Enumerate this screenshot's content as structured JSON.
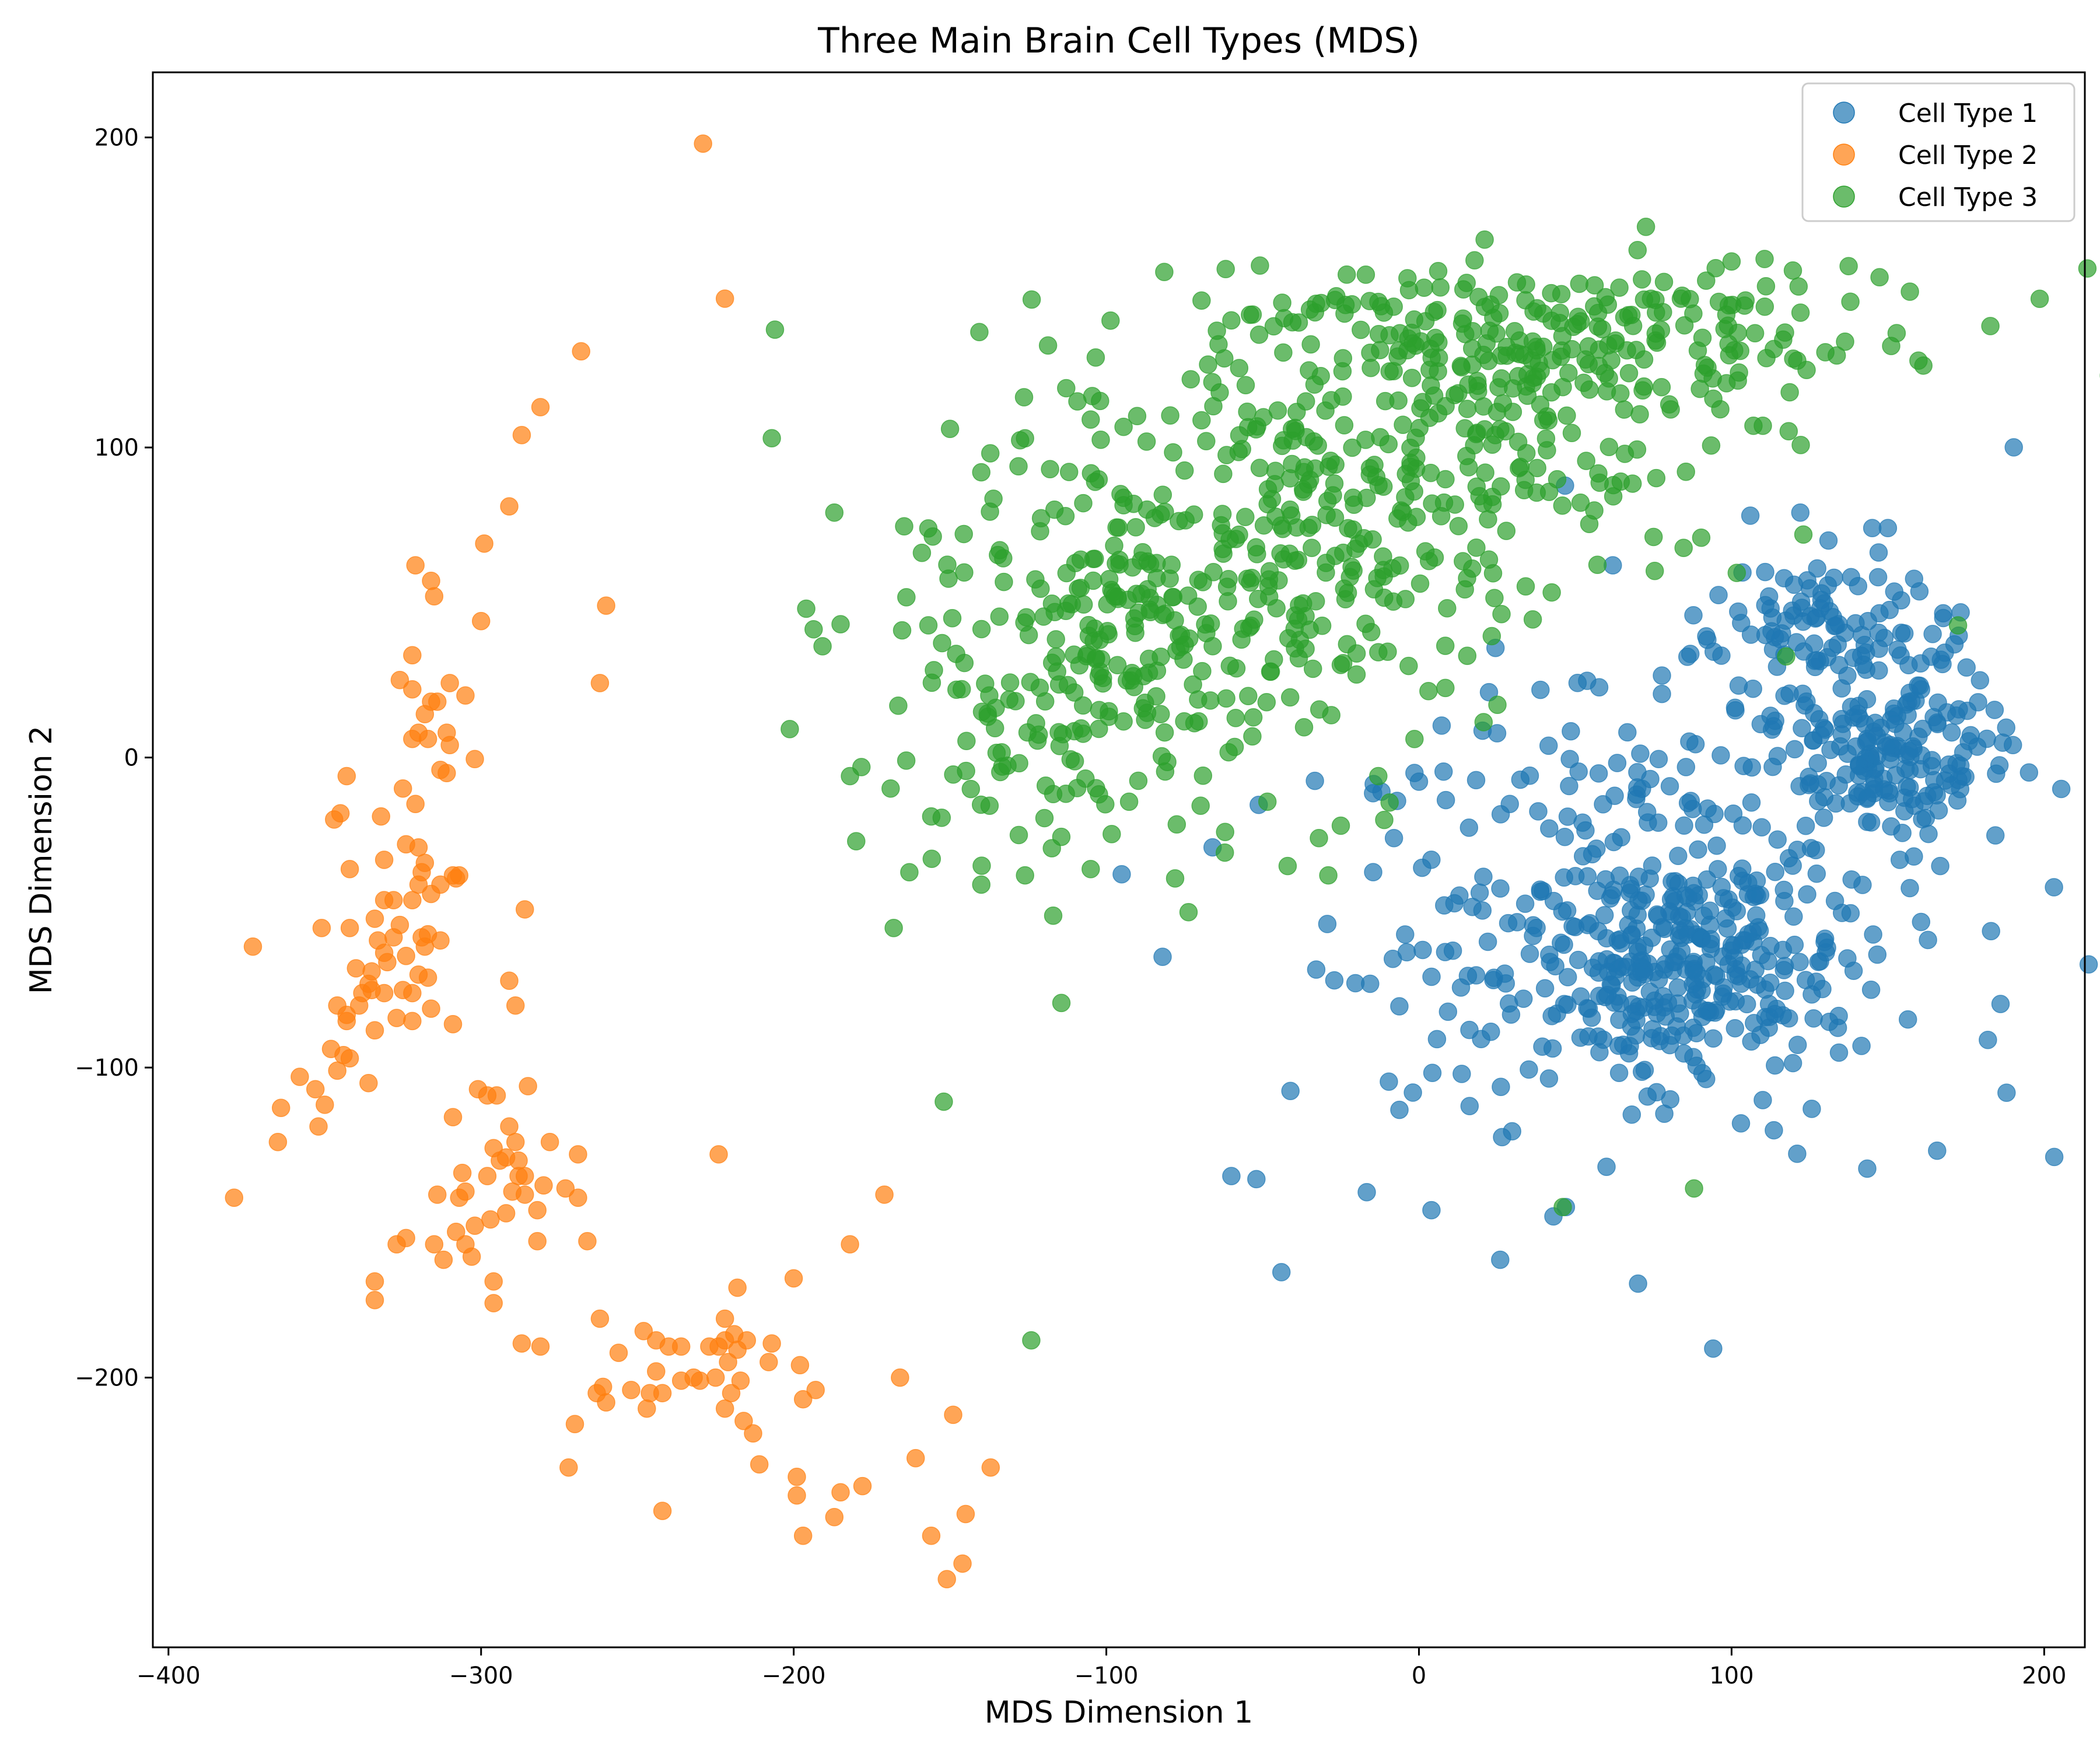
{
  "chart_data": {
    "type": "scatter",
    "title": "Three Main Brain Cell Types (MDS)",
    "xlabel": "MDS Dimension 1",
    "ylabel": "MDS Dimension 2",
    "xlim": [
      -405,
      213
    ],
    "ylim": [
      -287,
      221
    ],
    "xticks": [
      -400,
      -300,
      -200,
      -100,
      0,
      100,
      200
    ],
    "xtick_labels": [
      "−400",
      "−300",
      "−200",
      "−100",
      "0",
      "100",
      "200"
    ],
    "yticks": [
      -200,
      -100,
      0,
      100,
      200
    ],
    "ytick_labels": [
      "−200",
      "−100",
      "0",
      "100",
      "200"
    ],
    "grid": false,
    "legend": "top-right",
    "marker_alpha": 0.7,
    "series": [
      {
        "name": "Cell Type 1",
        "color": "#1f77b4",
        "seed": 11,
        "n": 780,
        "clusters": [
          {
            "w": 0.28,
            "cx": 85,
            "cy": -65,
            "sx": 22,
            "sy": 16
          },
          {
            "w": 0.22,
            "cx": 150,
            "cy": 2,
            "sx": 18,
            "sy": 12
          },
          {
            "w": 0.12,
            "cx": 130,
            "cy": 42,
            "sx": 20,
            "sy": 10
          },
          {
            "w": 0.38,
            "cx": 70,
            "cy": -45,
            "sx": 58,
            "sy": 42
          }
        ],
        "points": [
          [
            -44,
            -166
          ],
          [
            -60,
            -135
          ],
          [
            -52,
            -136
          ],
          [
            26,
            -162
          ],
          [
            4,
            -146
          ],
          [
            47,
            -145
          ],
          [
            60,
            -132
          ],
          [
            103,
            -118
          ],
          [
            190,
            4
          ],
          [
            183,
            -56
          ],
          [
            150,
            74
          ],
          [
            145,
            74
          ],
          [
            106,
            78
          ],
          [
            122,
            79
          ],
          [
            131,
            70
          ],
          [
            62,
            62
          ],
          [
            -12,
            -11
          ],
          [
            -7,
            -14
          ],
          [
            -8,
            -26
          ]
        ]
      },
      {
        "name": "Cell Type 2",
        "color": "#ff7f0e",
        "seed": 29,
        "n": 0,
        "clusters": [],
        "points": [
          [
            -379,
            -142
          ],
          [
            -365,
            -124
          ],
          [
            -364,
            -113
          ],
          [
            -373,
            -61
          ],
          [
            -358,
            -103
          ],
          [
            -353,
            -107
          ],
          [
            -352,
            -119
          ],
          [
            -350,
            -112
          ],
          [
            -351,
            -55
          ],
          [
            -348,
            -94
          ],
          [
            -346,
            -101
          ],
          [
            -344,
            -96
          ],
          [
            -342,
            -97
          ],
          [
            -346,
            -80
          ],
          [
            -343,
            -83
          ],
          [
            -339,
            -80
          ],
          [
            -336,
            -105
          ],
          [
            -343,
            -85
          ],
          [
            -340,
            -68
          ],
          [
            -342,
            -55
          ],
          [
            -338,
            -76
          ],
          [
            -336,
            -73
          ],
          [
            -334,
            -88
          ],
          [
            -333,
            -59
          ],
          [
            -331,
            -76
          ],
          [
            -335,
            -69
          ],
          [
            -331,
            -63
          ],
          [
            -327,
            -84
          ],
          [
            -330,
            -66
          ],
          [
            -328,
            -58
          ],
          [
            -325,
            -75
          ],
          [
            -326,
            -54
          ],
          [
            -322,
            -76
          ],
          [
            -320,
            -70
          ],
          [
            -319,
            -58
          ],
          [
            -318,
            -61
          ],
          [
            -322,
            -85
          ],
          [
            -324,
            -64
          ],
          [
            -316,
            -81
          ],
          [
            -317,
            -57
          ],
          [
            -317,
            -71
          ],
          [
            -313,
            -59
          ],
          [
            -334,
            -52
          ],
          [
            -331,
            -46
          ],
          [
            -328,
            -46
          ],
          [
            -331,
            -33
          ],
          [
            -332,
            -19
          ],
          [
            -322,
            -46
          ],
          [
            -320,
            -41
          ],
          [
            -319,
            -37
          ],
          [
            -318,
            -34
          ],
          [
            -320,
            -29
          ],
          [
            -313,
            -41
          ],
          [
            -316,
            -44
          ],
          [
            -308,
            -39
          ],
          [
            -307,
            -38
          ],
          [
            -302,
            -0.5
          ],
          [
            -345,
            -18
          ],
          [
            -347,
            -20
          ],
          [
            -343,
            -6
          ],
          [
            -342,
            -36
          ],
          [
            -335,
            -75
          ],
          [
            -326,
            25
          ],
          [
            -322,
            22
          ],
          [
            -318,
            14
          ],
          [
            -316,
            18
          ],
          [
            -314,
            18
          ],
          [
            -310,
            24
          ],
          [
            -311,
            8
          ],
          [
            -310,
            4
          ],
          [
            -322,
            6
          ],
          [
            -317,
            6
          ],
          [
            -322,
            33
          ],
          [
            -316,
            57
          ],
          [
            -315,
            52
          ],
          [
            -321,
            62
          ],
          [
            -320,
            8
          ],
          [
            -311,
            -5
          ],
          [
            -309,
            -38
          ],
          [
            -325,
            -10
          ],
          [
            -321,
            -15
          ],
          [
            -324,
            -28
          ],
          [
            -313,
            -4
          ],
          [
            -305,
            20
          ],
          [
            -309,
            -86
          ],
          [
            -291,
            -72
          ],
          [
            -289,
            -80
          ],
          [
            -286,
            -49
          ],
          [
            -300,
            44
          ],
          [
            -299,
            69
          ],
          [
            -291,
            81
          ],
          [
            -287,
            104
          ],
          [
            -281,
            113
          ],
          [
            -268,
            131
          ],
          [
            -262,
            24
          ],
          [
            -260,
            49
          ],
          [
            -229,
            198
          ],
          [
            -222,
            148
          ],
          [
            -301,
            -107
          ],
          [
            -309,
            -116
          ],
          [
            -295,
            -109
          ],
          [
            -291,
            -119
          ],
          [
            -285,
            -106
          ],
          [
            -296,
            -126
          ],
          [
            -292,
            -129
          ],
          [
            -289,
            -124
          ],
          [
            -288,
            -130
          ],
          [
            -294,
            -130
          ],
          [
            -298,
            -135
          ],
          [
            -297,
            -149
          ],
          [
            -292,
            -147
          ],
          [
            -286,
            -135
          ],
          [
            -288,
            -135
          ],
          [
            -290,
            -140
          ],
          [
            -286,
            -141
          ],
          [
            -282,
            -146
          ],
          [
            -280,
            -138
          ],
          [
            -282,
            -156
          ],
          [
            -278,
            -124
          ],
          [
            -269,
            -128
          ],
          [
            -273,
            -139
          ],
          [
            -269,
            -142
          ],
          [
            -266,
            -156
          ],
          [
            -272,
            -229
          ],
          [
            -270,
            -215
          ],
          [
            -263,
            -205
          ],
          [
            -261,
            -203
          ],
          [
            -260,
            -208
          ],
          [
            -262,
            -181
          ],
          [
            -256,
            -192
          ],
          [
            -252,
            -204
          ],
          [
            -248,
            -185
          ],
          [
            -247,
            -210
          ],
          [
            -246,
            -205
          ],
          [
            -244,
            -198
          ],
          [
            -244,
            -188
          ],
          [
            -242,
            -205
          ],
          [
            -240,
            -190
          ],
          [
            -236,
            -190
          ],
          [
            -236,
            -201
          ],
          [
            -232,
            -200
          ],
          [
            -230,
            -201
          ],
          [
            -227,
            -190
          ],
          [
            -224,
            -190
          ],
          [
            -222,
            -181
          ],
          [
            -222,
            -188
          ],
          [
            -219,
            -186
          ],
          [
            -218,
            -191
          ],
          [
            -217,
            -201
          ],
          [
            -220,
            -205
          ],
          [
            -222,
            -210
          ],
          [
            -225,
            -200
          ],
          [
            -221,
            -195
          ],
          [
            -218,
            -171
          ],
          [
            -216,
            -214
          ],
          [
            -213,
            -218
          ],
          [
            -211,
            -228
          ],
          [
            -207,
            -189
          ],
          [
            -215,
            -188
          ],
          [
            -208,
            -195
          ],
          [
            -200,
            -168
          ],
          [
            -199,
            -232
          ],
          [
            -199,
            -238
          ],
          [
            -198,
            -196
          ],
          [
            -197,
            -207
          ],
          [
            -197,
            -251
          ],
          [
            -193,
            -204
          ],
          [
            -187,
            -245
          ],
          [
            -185,
            -237
          ],
          [
            -182,
            -157
          ],
          [
            -178,
            -235
          ],
          [
            -171,
            -141
          ],
          [
            -166,
            -200
          ],
          [
            -161,
            -226
          ],
          [
            -156,
            -251
          ],
          [
            -151,
            -265
          ],
          [
            -149,
            -212
          ],
          [
            -146,
            -260
          ],
          [
            -145,
            -244
          ],
          [
            -137,
            -229
          ],
          [
            -242,
            -243
          ],
          [
            -224,
            -128
          ],
          [
            -296,
            -169
          ],
          [
            -296,
            -176
          ],
          [
            -287,
            -189
          ],
          [
            -281,
            -190
          ],
          [
            -303,
            -161
          ],
          [
            -305,
            -157
          ],
          [
            -302,
            -151
          ],
          [
            -307,
            -142
          ],
          [
            -306,
            -134
          ],
          [
            -305,
            -140
          ],
          [
            -308,
            -153
          ],
          [
            -312,
            -162
          ],
          [
            -315,
            -157
          ],
          [
            -314,
            -141
          ],
          [
            -324,
            -155
          ],
          [
            -327,
            -157
          ],
          [
            -334,
            -169
          ],
          [
            -334,
            -175
          ],
          [
            -298,
            -109
          ]
        ]
      },
      {
        "name": "Cell Type 3",
        "color": "#2ca02c",
        "seed": 47,
        "n": 840,
        "clusters": [
          {
            "w": 0.3,
            "cx": 40,
            "cy": 135,
            "sx": 55,
            "sy": 12
          },
          {
            "w": 0.25,
            "cx": 0,
            "cy": 92,
            "sx": 55,
            "sy": 25
          },
          {
            "w": 0.25,
            "cx": -60,
            "cy": 55,
            "sx": 45,
            "sy": 28
          },
          {
            "w": 0.2,
            "cx": -115,
            "cy": 25,
            "sx": 32,
            "sy": 30
          }
        ],
        "points": [
          [
            -207,
            103
          ],
          [
            -206,
            138
          ],
          [
            -196,
            48
          ],
          [
            -187,
            79
          ],
          [
            -185,
            43
          ],
          [
            -182,
            -6
          ],
          [
            -180,
            -27
          ],
          [
            -169,
            -10
          ],
          [
            -168,
            -55
          ],
          [
            -164,
            -1
          ],
          [
            -163,
            -37
          ],
          [
            -159,
            66
          ],
          [
            -156,
            -19
          ],
          [
            -152,
            -111
          ],
          [
            -140,
            -41
          ],
          [
            -126,
            -38
          ],
          [
            -117,
            -51
          ],
          [
            -105,
            -36
          ],
          [
            -78,
            -39
          ],
          [
            -62,
            -24
          ],
          [
            -42,
            -35
          ],
          [
            -32,
            -26
          ],
          [
            -29,
            -38
          ],
          [
            -25,
            -22
          ],
          [
            -13,
            -6
          ],
          [
            -128,
            -25
          ],
          [
            -124,
            -188
          ],
          [
            46,
            -145
          ],
          [
            88,
            -139
          ],
          [
            138,
            147
          ],
          [
            110,
            107
          ],
          [
            107,
            107
          ],
          [
            124,
            125
          ],
          [
            121,
            128
          ],
          [
            100,
            160
          ],
          [
            111,
            152
          ],
          [
            -118,
            93
          ],
          [
            -102,
            115
          ],
          [
            -73,
            122
          ],
          [
            -60,
            141
          ],
          [
            -150,
            106
          ],
          [
            -140,
            92
          ],
          [
            -105,
            109
          ]
        ]
      }
    ]
  }
}
